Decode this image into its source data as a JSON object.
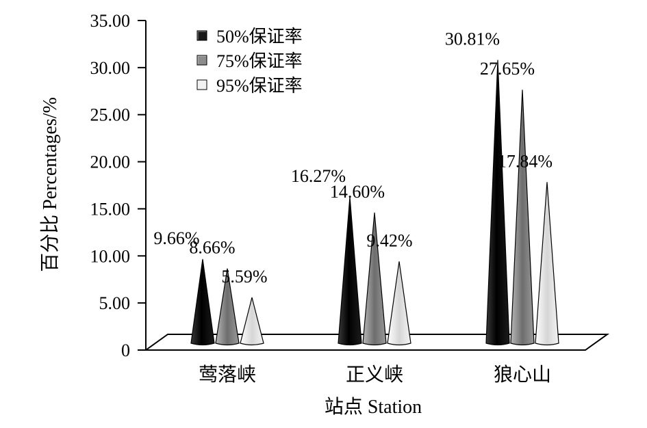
{
  "chart_data": {
    "type": "bar",
    "xlabel": "站点 Station",
    "ylabel": "百分比 Percentages/%",
    "categories": [
      "莺落峡",
      "正义峡",
      "狼心山"
    ],
    "series": [
      {
        "name": "50%保证率",
        "values": [
          9.66,
          16.27,
          30.81
        ],
        "labels": [
          "9.66%",
          "16.27%",
          "30.81%"
        ],
        "color": "#1a1a1a"
      },
      {
        "name": "75%保证率",
        "values": [
          8.66,
          14.6,
          27.65
        ],
        "labels": [
          "8.66%",
          "14.60%",
          "27.65%"
        ],
        "color": "#8c8c8c"
      },
      {
        "name": "95%保证率",
        "values": [
          5.59,
          9.42,
          17.84
        ],
        "labels": [
          "5.59%",
          "9.42%",
          "17.84%"
        ],
        "color": "#f2f2f2"
      }
    ],
    "ylim": [
      0,
      35
    ],
    "yticks": [
      "0",
      "5.00",
      "10.00",
      "15.00",
      "20.00",
      "25.00",
      "30.00",
      "35.00"
    ],
    "ytick_values": [
      0,
      5,
      10,
      15,
      20,
      25,
      30,
      35
    ],
    "grid": false,
    "legend_position": "top-left",
    "bar_shape": "cone"
  }
}
